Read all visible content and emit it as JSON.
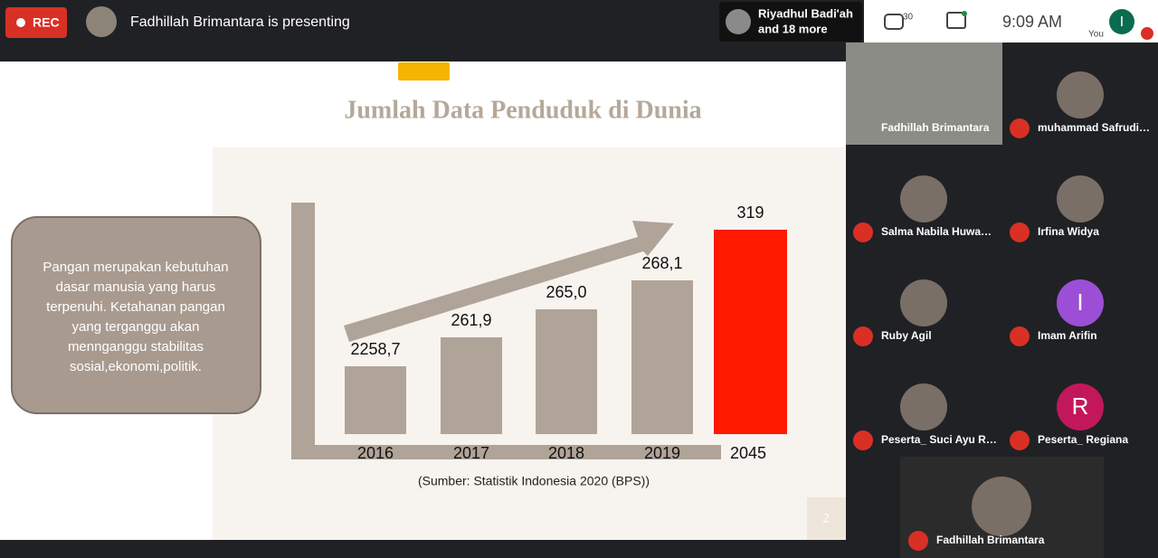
{
  "top_bar": {
    "rec": "REC",
    "presenter": "Fadhillah Brimantara is presenting",
    "others_name": "Riyadhul Badi'ah",
    "others_more": "and 18 more",
    "people_count": "30",
    "time": "9:09 AM",
    "you": "You",
    "you_initial": "I"
  },
  "slide": {
    "title": "Jumlah Data Penduduk di Dunia",
    "note_lines": [
      "Pangan merupakan kebutuhan",
      "dasar manusia yang harus",
      "terpenuhi. Ketahanan pangan",
      "yang terganggu akan",
      "mennganggu stabilitas",
      "sosial,ekonomi,politik."
    ],
    "bars": [
      {
        "label": "2258,7",
        "year": "2016"
      },
      {
        "label": "261,9",
        "year": "2017"
      },
      {
        "label": "265,0",
        "year": "2018"
      },
      {
        "label": "268,1",
        "year": "2019"
      },
      {
        "label": "319",
        "year": "2045"
      }
    ],
    "source": "(Sumber:  Statistik Indonesia 2020 (BPS))",
    "page": "2"
  },
  "participants": [
    {
      "name": "Fadhillah Brimantara"
    },
    {
      "name": "muhammad Safrudi…"
    },
    {
      "name": "Salma Nabila Huwa…"
    },
    {
      "name": "Irfina Widya"
    },
    {
      "name": "Ruby Agil"
    },
    {
      "name": "Imam Arifin",
      "initial": "I"
    },
    {
      "name": "Peserta_ Suci Ayu R…"
    },
    {
      "name": "Peserta_ Regiana",
      "initial": "R"
    },
    {
      "name": "Fadhillah Brimantara"
    }
  ]
}
